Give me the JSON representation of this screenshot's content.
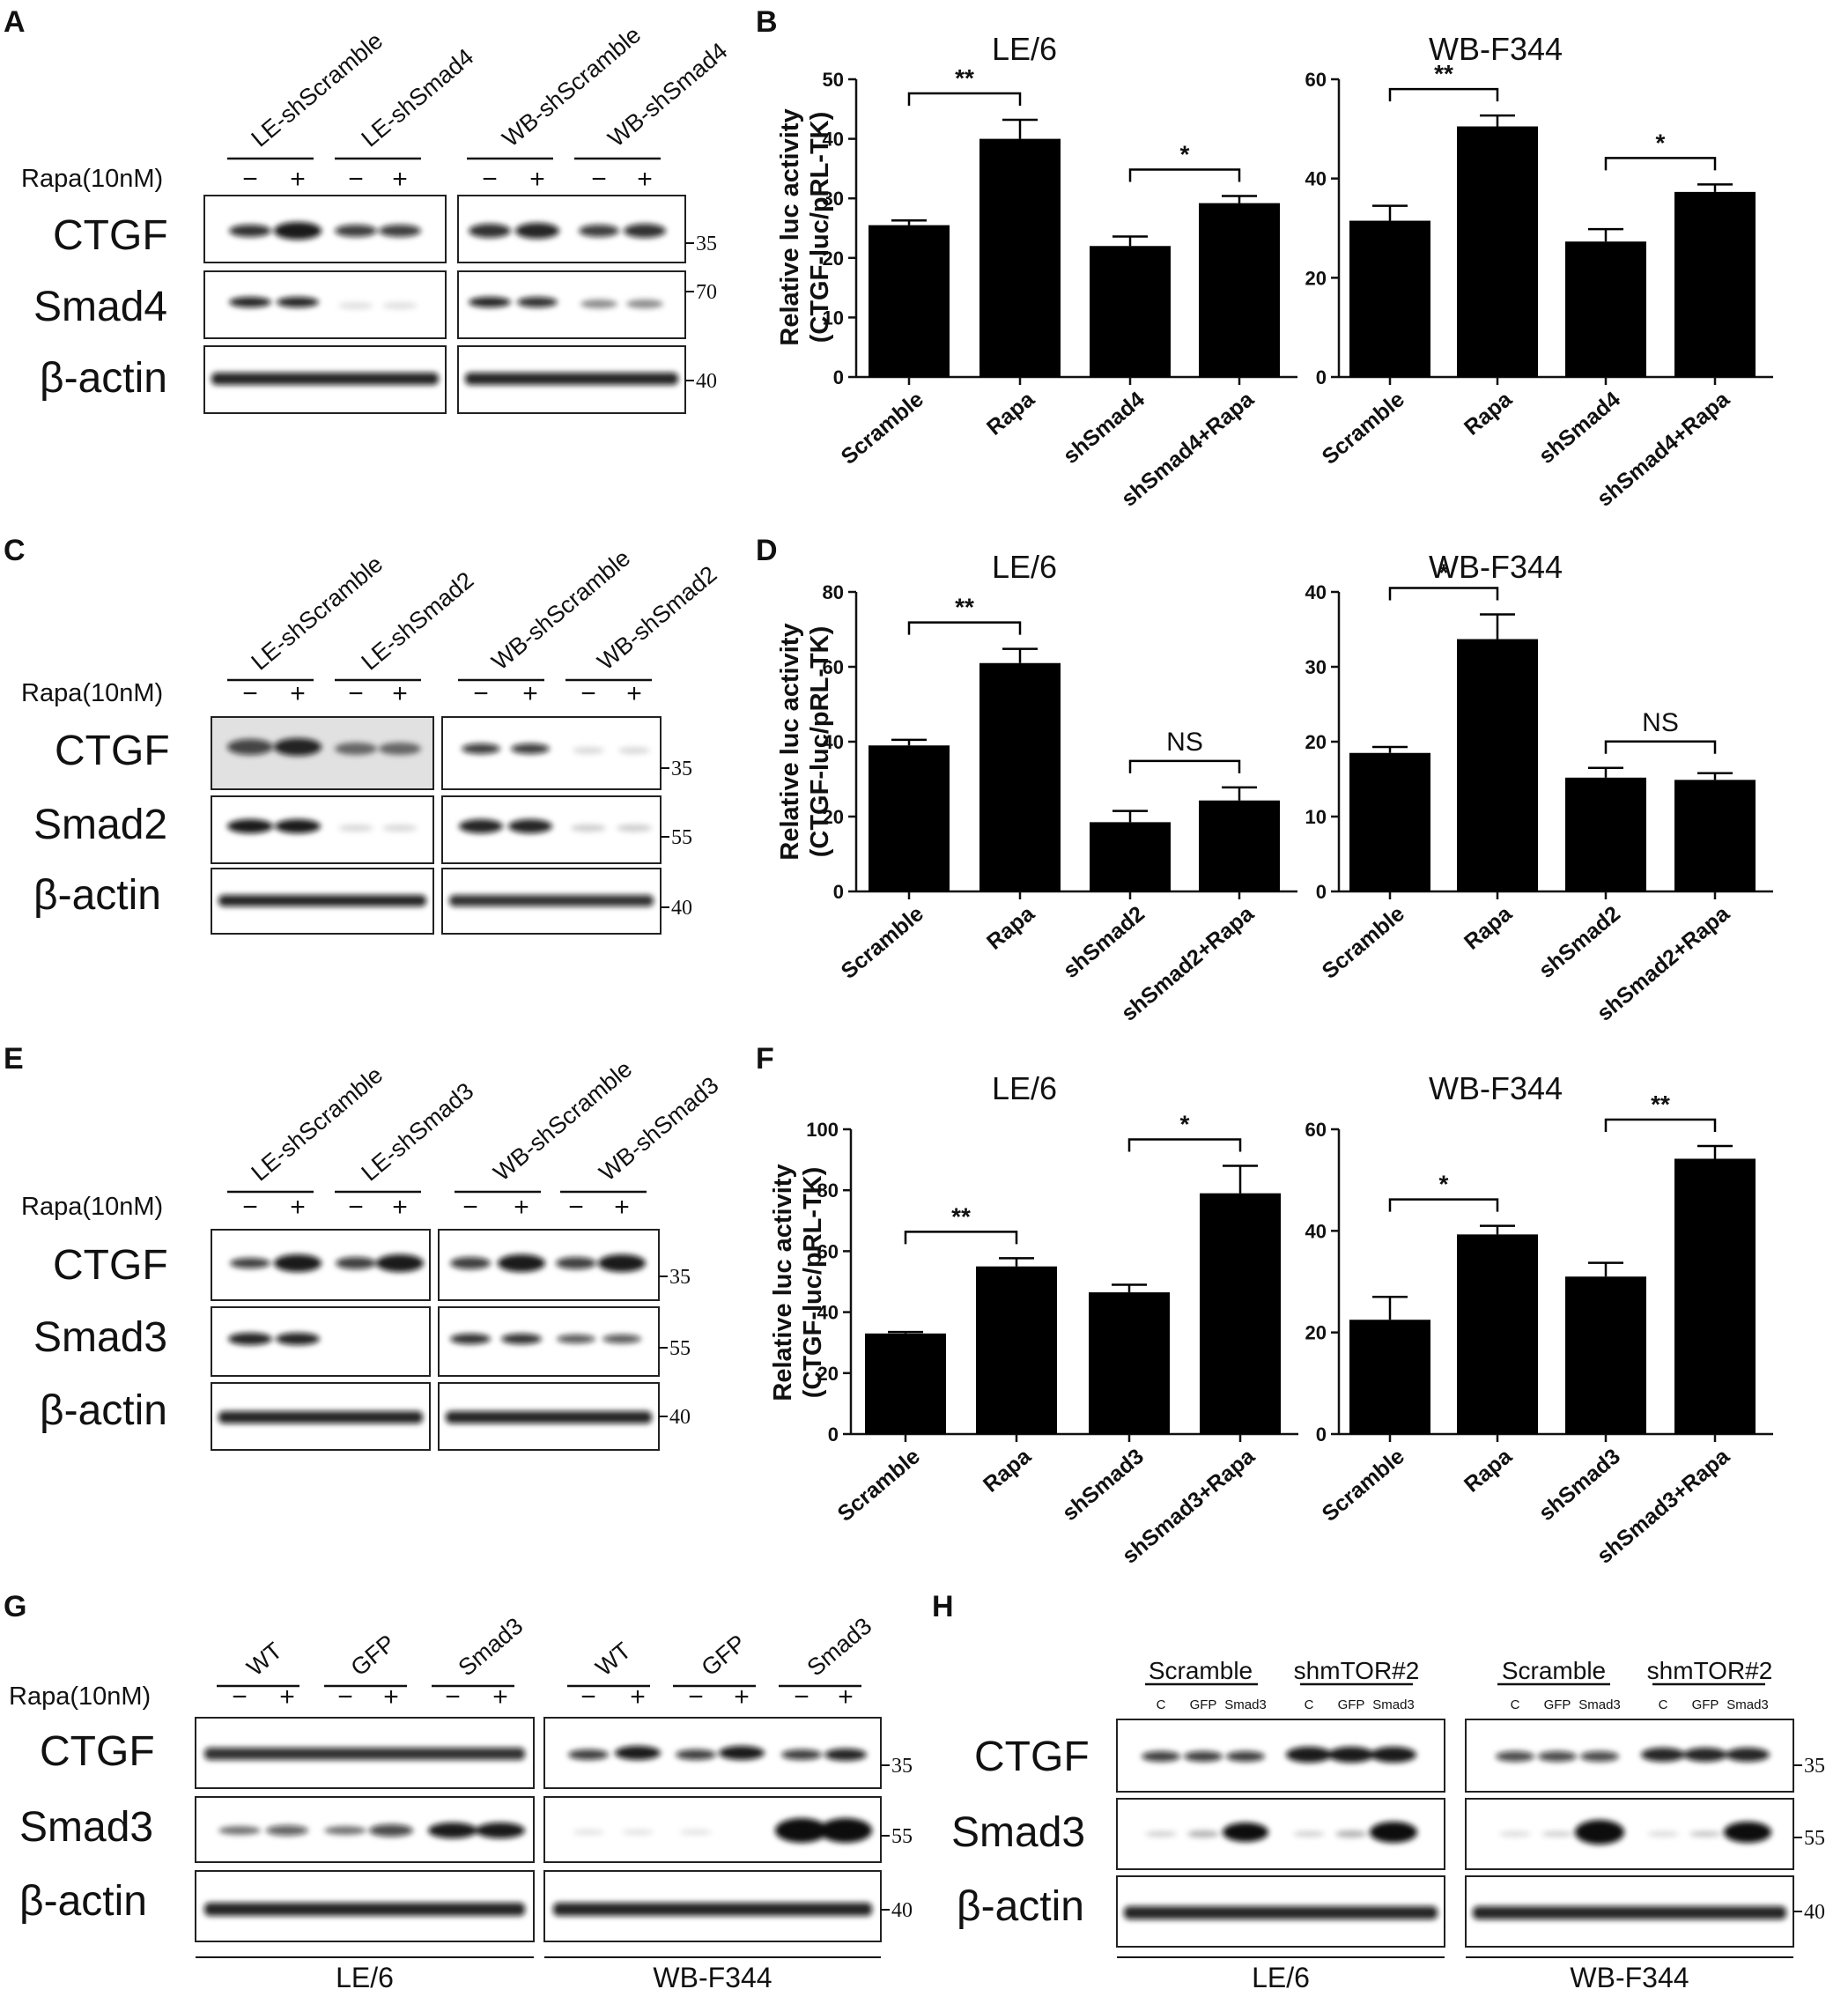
{
  "panel_letters": [
    "A",
    "B",
    "C",
    "D",
    "E",
    "F",
    "G",
    "H"
  ],
  "rapa_label": "Rapa(10nM)",
  "minus": "−",
  "plus": "+",
  "blots": {
    "A": {
      "headers": [
        "LE-shScramble",
        "LE-shSmad4",
        "WB-shScramble",
        "WB-shSmad4"
      ],
      "rows": [
        "CTGF",
        "Smad4",
        "β-actin"
      ],
      "markers": [
        "35",
        "70",
        "40"
      ]
    },
    "C": {
      "headers": [
        "LE-shScramble",
        "LE-shSmad2",
        "WB-shScramble",
        "WB-shSmad2"
      ],
      "rows": [
        "CTGF",
        "Smad2",
        "β-actin"
      ],
      "markers": [
        "35",
        "55",
        "40"
      ]
    },
    "E": {
      "headers": [
        "LE-shScramble",
        "LE-shSmad3",
        "WB-shScramble",
        "WB-shSmad3"
      ],
      "rows": [
        "CTGF",
        "Smad3",
        "β-actin"
      ],
      "markers": [
        "35",
        "55",
        "40"
      ]
    },
    "G": {
      "headers": [
        "WT",
        "GFP",
        "Smad3",
        "WT",
        "GFP",
        "Smad3"
      ],
      "rows": [
        "CTGF",
        "Smad3",
        "β-actin"
      ],
      "markers": [
        "35",
        "55",
        "40"
      ],
      "footers": [
        "LE/6",
        "WB-F344"
      ]
    },
    "H": {
      "group_headers": [
        "Scramble",
        "shmTOR#2",
        "Scramble",
        "shmTOR#2"
      ],
      "lanes": [
        "C",
        "GFP",
        "Smad3",
        "C",
        "GFP",
        "Smad3",
        "C",
        "GFP",
        "Smad3",
        "C",
        "GFP",
        "Smad3"
      ],
      "rows": [
        "CTGF",
        "Smad3",
        "β-actin"
      ],
      "markers": [
        "35",
        "55",
        "40"
      ],
      "footers": [
        "LE/6",
        "WB-F344"
      ]
    }
  },
  "chart_data": [
    {
      "panel": "B",
      "type": "bar",
      "title": "LE/6",
      "ylabel": "Relative luc activity (CTGF-luc/pRL-TK)",
      "categories": [
        "Scramble",
        "Rapa",
        "shSmad4",
        "shSmad4+Rapa"
      ],
      "values": [
        25.5,
        40,
        22,
        29.2
      ],
      "errors": [
        0.8,
        3.2,
        1.6,
        1.2
      ],
      "ylim": [
        0,
        50
      ],
      "yticks": [
        0,
        10,
        20,
        30,
        40,
        50
      ],
      "significance": [
        {
          "pair": [
            0,
            1
          ],
          "label": "**"
        },
        {
          "pair": [
            2,
            3
          ],
          "label": "*"
        }
      ]
    },
    {
      "panel": "B",
      "type": "bar",
      "title": "WB-F344",
      "ylabel": "",
      "categories": [
        "Scramble",
        "Rapa",
        "shSmad4",
        "shSmad4+Rapa"
      ],
      "values": [
        31.5,
        50.5,
        27.3,
        37.3
      ],
      "errors": [
        3.0,
        2.2,
        2.5,
        1.5
      ],
      "ylim": [
        0,
        60
      ],
      "yticks": [
        0,
        20,
        40,
        60
      ],
      "significance": [
        {
          "pair": [
            0,
            1
          ],
          "label": "**"
        },
        {
          "pair": [
            2,
            3
          ],
          "label": "*"
        }
      ]
    },
    {
      "panel": "D",
      "type": "bar",
      "title": "LE/6",
      "ylabel": "Relative luc activity (CTGF-luc/pRL-TK)",
      "categories": [
        "Scramble",
        "Rapa",
        "shSmad2",
        "shSmad2+Rapa"
      ],
      "values": [
        39,
        61,
        18.5,
        24.3
      ],
      "errors": [
        1.5,
        3.8,
        3.0,
        3.5
      ],
      "ylim": [
        0,
        80
      ],
      "yticks": [
        0,
        20,
        40,
        60,
        80
      ],
      "significance": [
        {
          "pair": [
            0,
            1
          ],
          "label": "**"
        },
        {
          "pair": [
            2,
            3
          ],
          "label": "NS"
        }
      ]
    },
    {
      "panel": "D",
      "type": "bar",
      "title": "WB-F344",
      "ylabel": "",
      "categories": [
        "Scramble",
        "Rapa",
        "shSmad2",
        "shSmad2+Rapa"
      ],
      "values": [
        18.5,
        33.7,
        15.2,
        14.9
      ],
      "errors": [
        0.8,
        3.3,
        1.3,
        0.9
      ],
      "ylim": [
        0,
        40
      ],
      "yticks": [
        0,
        10,
        20,
        30,
        40
      ],
      "significance": [
        {
          "pair": [
            0,
            1
          ],
          "label": "*"
        },
        {
          "pair": [
            2,
            3
          ],
          "label": "NS"
        }
      ]
    },
    {
      "panel": "F",
      "type": "bar",
      "title": "LE/6",
      "ylabel": "Relative luc activity (CTGF-luc/pRL-TK)",
      "categories": [
        "Scramble",
        "Rapa",
        "shSmad3",
        "shSmad3+Rapa"
      ],
      "values": [
        33,
        55,
        46.5,
        79
      ],
      "errors": [
        0.5,
        2.7,
        2.5,
        9.0
      ],
      "ylim": [
        0,
        100
      ],
      "yticks": [
        0,
        20,
        40,
        60,
        80,
        100
      ],
      "significance": [
        {
          "pair": [
            0,
            1
          ],
          "label": "**"
        },
        {
          "pair": [
            2,
            3
          ],
          "label": "*"
        }
      ]
    },
    {
      "panel": "F",
      "type": "bar",
      "title": "WB-F344",
      "ylabel": "",
      "categories": [
        "Scramble",
        "Rapa",
        "shSmad3",
        "shSmad3+Rapa"
      ],
      "values": [
        22.5,
        39.3,
        31,
        54.2
      ],
      "errors": [
        4.5,
        1.7,
        2.7,
        2.5
      ],
      "ylim": [
        0,
        60
      ],
      "yticks": [
        0,
        20,
        40,
        60
      ],
      "significance": [
        {
          "pair": [
            0,
            1
          ],
          "label": "*"
        },
        {
          "pair": [
            2,
            3
          ],
          "label": "**"
        }
      ]
    }
  ]
}
